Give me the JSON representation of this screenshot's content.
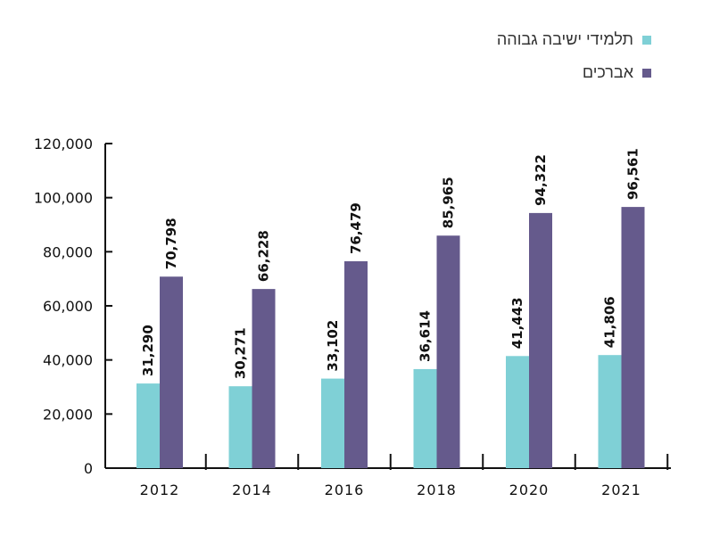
{
  "colors": {
    "series_a": "#7fd0d6",
    "series_b": "#655a8c",
    "axis": "#111111"
  },
  "legend": [
    {
      "label": "תלמידי ישיבה גבוהה",
      "color": "#7fd0d6"
    },
    {
      "label": "אברכים",
      "color": "#655a8c"
    }
  ],
  "chart_data": {
    "type": "bar",
    "categories": [
      "2012",
      "2014",
      "2016",
      "2018",
      "2020",
      "2021"
    ],
    "series": [
      {
        "name": "תלמידי ישיבה גבוהה",
        "values": [
          31290,
          30271,
          33102,
          36614,
          41443,
          41806
        ]
      },
      {
        "name": "אברכים",
        "values": [
          70798,
          66228,
          76479,
          85965,
          94322,
          96561
        ]
      }
    ],
    "value_labels": [
      [
        "31,290",
        "30,271",
        "33,102",
        "36,614",
        "41,443",
        "41,806"
      ],
      [
        "70,798",
        "66,228",
        "76,479",
        "85,965",
        "94,322",
        "96,561"
      ]
    ],
    "ylim": [
      0,
      120000
    ],
    "y_ticks": [
      0,
      20000,
      40000,
      60000,
      80000,
      100000,
      120000
    ],
    "y_tick_labels": [
      "0",
      "20,000",
      "40,000",
      "60,000",
      "80,000",
      "100,000",
      "120,000"
    ],
    "legend_position": "top-right",
    "grid": false,
    "title": "",
    "xlabel": "",
    "ylabel": ""
  }
}
